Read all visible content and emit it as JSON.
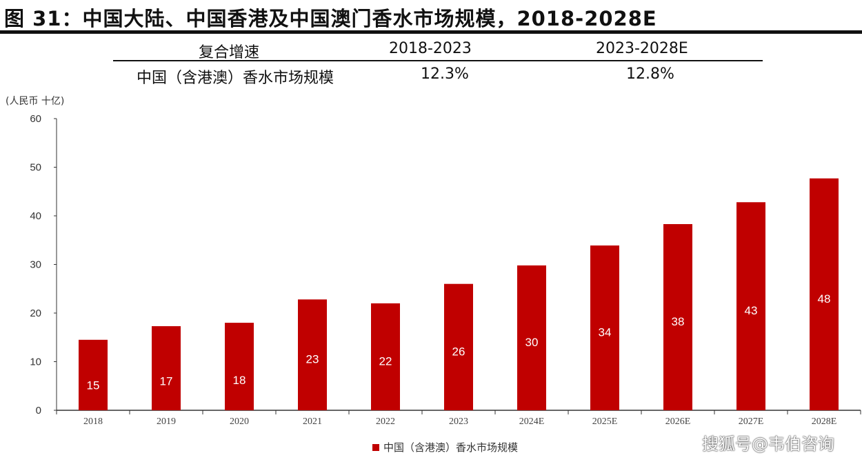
{
  "title": "图 31：中国大陆、中国香港及中国澳门香水市场规模，2018-2028E",
  "cagr_table": {
    "header": [
      "复合增速",
      "2018-2023",
      "2023-2028E"
    ],
    "row": [
      "中国（含港澳）香水市场规模",
      "12.3%",
      "12.8%"
    ]
  },
  "watermark": "搜狐号@韦伯咨询",
  "chart_data": {
    "type": "bar",
    "ylabel": "(人民币 十亿)",
    "categories": [
      "2018",
      "2019",
      "2020",
      "2021",
      "2022",
      "2023",
      "2024E",
      "2025E",
      "2026E",
      "2027E",
      "2028E"
    ],
    "series": [
      {
        "name": "中国（含港澳）香水市场规模",
        "values": [
          14.5,
          17.3,
          18.0,
          22.8,
          22.0,
          26.0,
          29.8,
          33.9,
          38.3,
          42.8,
          47.7
        ],
        "labels": [
          "15",
          "17",
          "18",
          "23",
          "22",
          "26",
          "30",
          "34",
          "38",
          "43",
          "48"
        ],
        "color": "#c00000"
      }
    ],
    "ylim": [
      0,
      60
    ],
    "yticks": [
      0,
      10,
      20,
      30,
      40,
      50,
      60
    ],
    "grid": false,
    "legend": "bottom"
  }
}
